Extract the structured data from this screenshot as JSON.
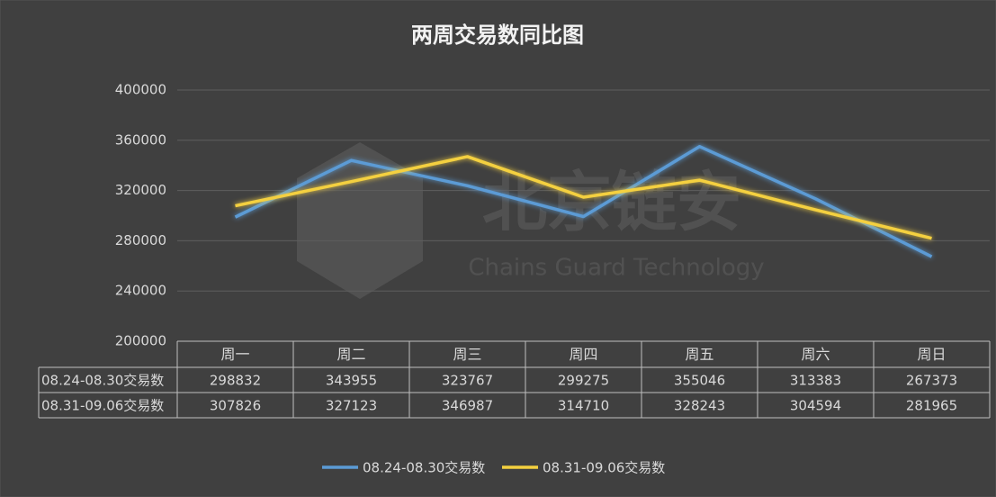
{
  "chart_data": {
    "type": "line",
    "title": "两周交易数同比图",
    "categories": [
      "周一",
      "周二",
      "周三",
      "周四",
      "周五",
      "周六",
      "周日"
    ],
    "series": [
      {
        "name": "08.24-08.30交易数",
        "color": "#5b9bd5",
        "values": [
          298832,
          343955,
          323767,
          299275,
          355046,
          313383,
          267373
        ]
      },
      {
        "name": "08.31-09.06交易数",
        "color": "#f4d03f",
        "values": [
          307826,
          327123,
          346987,
          314710,
          328243,
          304594,
          281965
        ]
      }
    ],
    "ylim": [
      200000,
      400000
    ],
    "yticks": [
      200000,
      240000,
      280000,
      320000,
      360000,
      400000
    ],
    "grid": true,
    "legend": "bottom",
    "data_table": true,
    "watermark": {
      "name": "北京链安",
      "tagline": "Chains Guard Technology"
    }
  }
}
